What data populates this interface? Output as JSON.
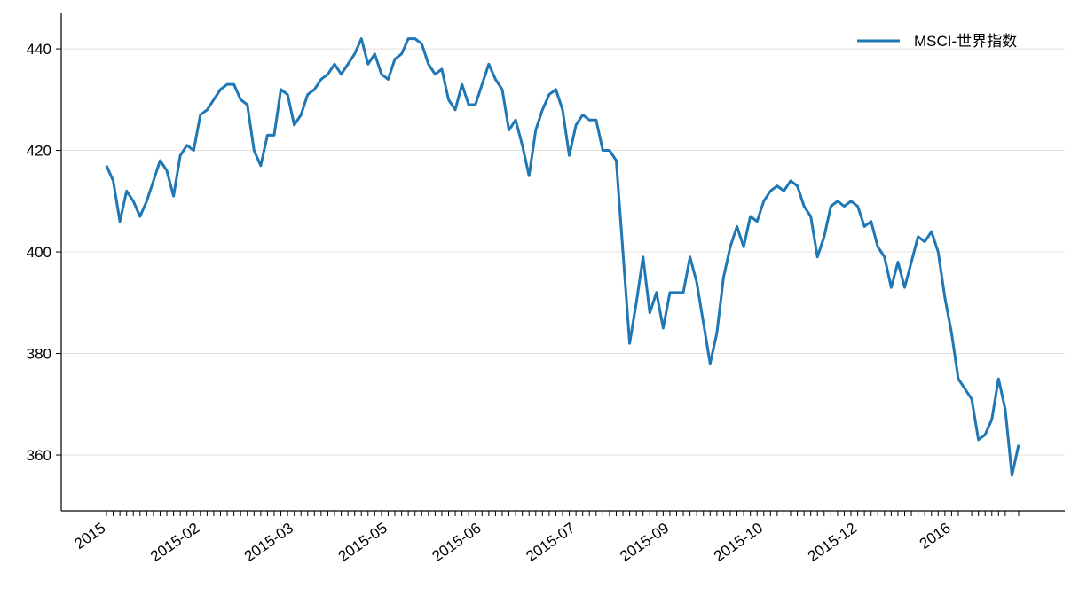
{
  "chart_data": {
    "type": "line",
    "categories": [
      "2015",
      null,
      null,
      null,
      null,
      null,
      null,
      null,
      null,
      null,
      null,
      null,
      null,
      null,
      "2015-02",
      null,
      null,
      null,
      null,
      null,
      null,
      null,
      null,
      null,
      null,
      null,
      null,
      null,
      "2015-03",
      null,
      null,
      null,
      null,
      null,
      null,
      null,
      null,
      null,
      null,
      null,
      null,
      null,
      "2015-05",
      null,
      null,
      null,
      null,
      null,
      null,
      null,
      null,
      null,
      null,
      null,
      null,
      null,
      "2015-06",
      null,
      null,
      null,
      null,
      null,
      null,
      null,
      null,
      null,
      null,
      null,
      null,
      null,
      "2015-07",
      null,
      null,
      null,
      null,
      null,
      null,
      null,
      null,
      null,
      null,
      null,
      null,
      null,
      "2015-09",
      null,
      null,
      null,
      null,
      null,
      null,
      null,
      null,
      null,
      null,
      null,
      null,
      null,
      "2015-10",
      null,
      null,
      null,
      null,
      null,
      null,
      null,
      null,
      null,
      null,
      null,
      null,
      null,
      "2015-12",
      null,
      null,
      null,
      null,
      null,
      null,
      null,
      null,
      null,
      null,
      null,
      null,
      null,
      "2016",
      null,
      null,
      null,
      null,
      null,
      null,
      null,
      null,
      null,
      null
    ],
    "series": [
      {
        "name": "MSCI-世界指数",
        "color": "#1f77b4",
        "values": [
          417,
          414,
          406,
          412,
          410,
          407,
          410,
          414,
          418,
          416,
          411,
          419,
          421,
          420,
          427,
          428,
          430,
          432,
          433,
          433,
          430,
          429,
          420,
          417,
          423,
          423,
          432,
          431,
          425,
          427,
          431,
          432,
          434,
          435,
          437,
          435,
          437,
          439,
          442,
          437,
          439,
          435,
          434,
          438,
          439,
          442,
          442,
          441,
          437,
          435,
          436,
          430,
          428,
          433,
          429,
          429,
          433,
          437,
          434,
          432,
          424,
          426,
          421,
          415,
          424,
          428,
          431,
          432,
          428,
          419,
          425,
          427,
          426,
          426,
          420,
          420,
          418,
          400,
          382,
          390,
          399,
          388,
          392,
          385,
          392,
          392,
          392,
          399,
          394,
          386,
          378,
          384,
          395,
          401,
          405,
          401,
          407,
          406,
          410,
          412,
          413,
          412,
          414,
          413,
          409,
          407,
          399,
          403,
          409,
          410,
          409,
          410,
          409,
          405,
          406,
          401,
          399,
          393,
          398,
          393,
          398,
          403,
          402,
          404,
          400,
          391,
          384,
          375,
          373,
          371,
          363,
          364,
          367,
          375,
          369,
          356,
          362
        ]
      }
    ],
    "ylim": [
      349,
      447
    ],
    "yticks": [
      360,
      380,
      400,
      420,
      440
    ],
    "grid": true,
    "legend": "upper right"
  }
}
